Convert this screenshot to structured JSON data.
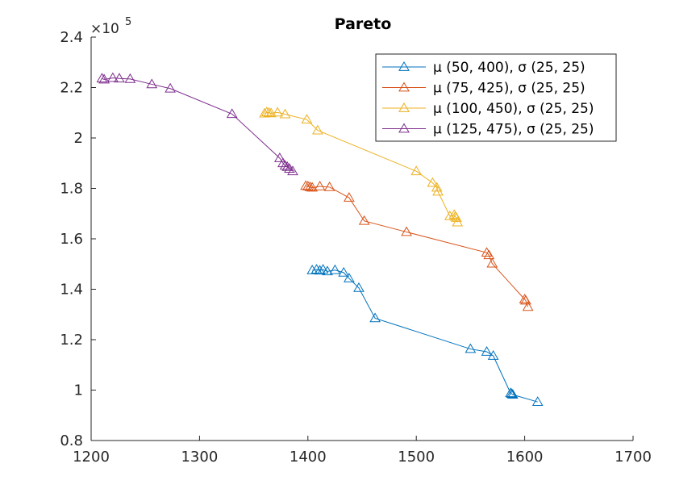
{
  "chart_data": {
    "type": "line",
    "title": "Pareto",
    "xlabel": "",
    "ylabel": "",
    "xlim": [
      1200,
      1700
    ],
    "ylim": [
      0.8,
      2.4
    ],
    "y_exponent_label": "×10",
    "y_exponent_power": "5",
    "x_ticks": [
      "1200",
      "1300",
      "1400",
      "1500",
      "1600",
      "1700"
    ],
    "y_ticks": [
      "0.8",
      "1",
      "1.2",
      "1.4",
      "1.6",
      "1.8",
      "2",
      "2.2",
      "2.4"
    ],
    "marker": "triangle",
    "legend_position": "top-right",
    "series": [
      {
        "name": "μ (50, 400), σ (25, 25)",
        "color": "#0072BD",
        "x": [
          1404,
          1408,
          1411,
          1414,
          1418,
          1425,
          1433,
          1438,
          1447,
          1462,
          1550,
          1565,
          1571,
          1587,
          1588,
          1589,
          1612
        ],
        "y": [
          1.475,
          1.478,
          1.474,
          1.478,
          1.471,
          1.476,
          1.466,
          1.443,
          1.405,
          1.285,
          1.163,
          1.152,
          1.136,
          0.988,
          0.985,
          0.982,
          0.953
        ]
      },
      {
        "name": "μ (75, 425), σ (25, 25)",
        "color": "#D95319",
        "x": [
          1398,
          1400,
          1402,
          1404,
          1411,
          1420,
          1438,
          1452,
          1491,
          1565,
          1567,
          1570,
          1600,
          1601,
          1603
        ],
        "y": [
          1.81,
          1.808,
          1.805,
          1.803,
          1.808,
          1.805,
          1.763,
          1.671,
          1.627,
          1.545,
          1.535,
          1.502,
          1.36,
          1.355,
          1.33
        ]
      },
      {
        "name": "μ (100, 450), σ (25, 25)",
        "color": "#EDB120",
        "x": [
          1360,
          1362,
          1364,
          1366,
          1372,
          1379,
          1399,
          1409,
          1500,
          1515,
          1519,
          1520,
          1531,
          1535,
          1536,
          1537,
          1538
        ],
        "y": [
          2.097,
          2.102,
          2.1,
          2.098,
          2.101,
          2.094,
          2.073,
          2.03,
          1.868,
          1.822,
          1.803,
          1.787,
          1.69,
          1.695,
          1.688,
          1.683,
          1.665
        ]
      },
      {
        "name": "μ (125, 475), σ (25, 25)",
        "color": "#7E2F8E",
        "x": [
          1210,
          1212,
          1220,
          1226,
          1236,
          1256,
          1273,
          1330,
          1374,
          1377,
          1379,
          1381,
          1383,
          1386
        ],
        "y": [
          2.236,
          2.232,
          2.238,
          2.236,
          2.234,
          2.213,
          2.196,
          2.095,
          1.92,
          1.9,
          1.89,
          1.885,
          1.878,
          1.868
        ]
      }
    ]
  }
}
